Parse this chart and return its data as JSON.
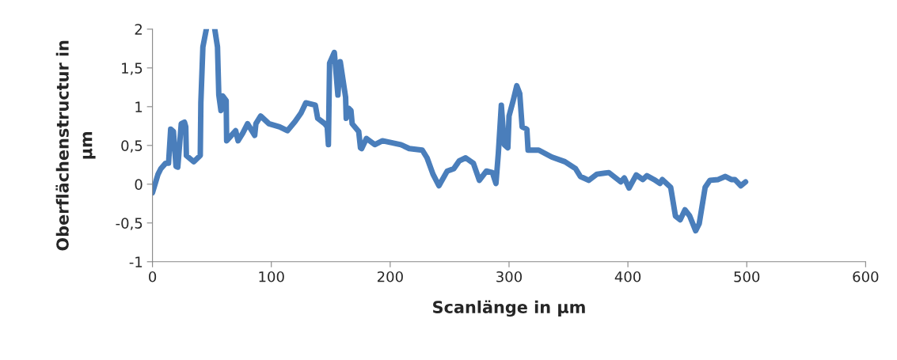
{
  "chart_data": {
    "type": "line",
    "xlabel": "Scanlänge in µm",
    "ylabel": "Oberflächenstructur in\nµm",
    "xlim": [
      0,
      600
    ],
    "xticks": [
      0,
      100,
      200,
      300,
      400,
      500,
      600
    ],
    "ylim": [
      -1,
      2
    ],
    "yticks": [
      {
        "value": -1,
        "label": "-1"
      },
      {
        "value": -0.5,
        "label": "-0,5"
      },
      0,
      {
        "value": 0.5,
        "label": "0,5"
      },
      1,
      {
        "value": 1.5,
        "label": "1,5"
      },
      2
    ],
    "grid": false,
    "line_style": "solid",
    "series": [
      {
        "color": "#4a7ebb",
        "x": [
          0,
          4.7,
          7,
          11,
          13.5,
          15.3,
          17.6,
          19.8,
          21.3,
          24.2,
          26.9,
          28,
          28.5,
          34.7,
          40.2,
          40.7,
          42.4,
          45.3,
          47.5,
          52.4,
          54.7,
          55.8,
          57.6,
          59,
          62,
          62.4,
          67,
          70,
          72,
          76,
          80,
          86,
          87,
          91,
          98,
          107,
          113.5,
          120,
          125,
          129,
          137,
          139,
          145,
          147,
          148,
          149,
          153,
          156,
          158,
          162.5,
          163,
          165,
          167,
          168,
          173.5,
          175,
          176,
          180,
          187,
          193.5,
          209,
          216,
          227,
          231,
          236,
          241,
          248,
          253.5,
          258,
          263.5,
          270,
          275,
          281,
          286,
          289,
          291,
          293.5,
          296,
          299,
          300,
          303.5,
          306.5,
          309,
          311,
          315,
          316,
          325,
          336,
          347,
          356,
          360,
          367,
          374,
          384,
          394,
          397,
          401,
          407,
          412.5,
          416,
          422,
          427,
          429,
          436,
          440,
          444,
          448,
          452,
          457,
          460,
          465,
          469,
          476,
          482,
          487,
          490,
          495,
          499
        ],
        "values": [
          -0.11,
          0.13,
          0.2,
          0.27,
          0.27,
          0.71,
          0.68,
          0.23,
          0.22,
          0.78,
          0.8,
          0.74,
          0.37,
          0.29,
          0.37,
          1.05,
          1.77,
          2,
          null,
          2,
          1.77,
          1.15,
          0.95,
          1.14,
          1.08,
          0.56,
          0.64,
          0.69,
          0.56,
          0.66,
          0.78,
          0.63,
          0.78,
          0.88,
          0.78,
          0.74,
          0.69,
          0.81,
          0.92,
          1.05,
          1.02,
          0.85,
          0.78,
          0.74,
          0.51,
          1.56,
          1.7,
          1.15,
          1.58,
          1.12,
          0.85,
          0.98,
          0.95,
          0.78,
          0.68,
          0.47,
          0.46,
          0.59,
          0.51,
          0.56,
          0.51,
          0.46,
          0.44,
          0.34,
          0.13,
          -0.02,
          0.17,
          0.2,
          0.3,
          0.34,
          0.27,
          0.05,
          0.17,
          0.15,
          0.01,
          0.4,
          1.02,
          0.51,
          0.47,
          0.88,
          1.08,
          1.27,
          1.17,
          0.74,
          0.71,
          0.44,
          0.44,
          0.35,
          0.29,
          0.2,
          0.1,
          0.05,
          0.13,
          0.15,
          0.03,
          0.08,
          -0.05,
          0.12,
          0.06,
          0.11,
          0.06,
          0.01,
          0.06,
          -0.04,
          -0.41,
          -0.46,
          -0.33,
          -0.41,
          -0.6,
          -0.51,
          -0.04,
          0.05,
          0.06,
          0.1,
          0.06,
          0.06,
          -0.02,
          0.03
        ]
      }
    ]
  }
}
